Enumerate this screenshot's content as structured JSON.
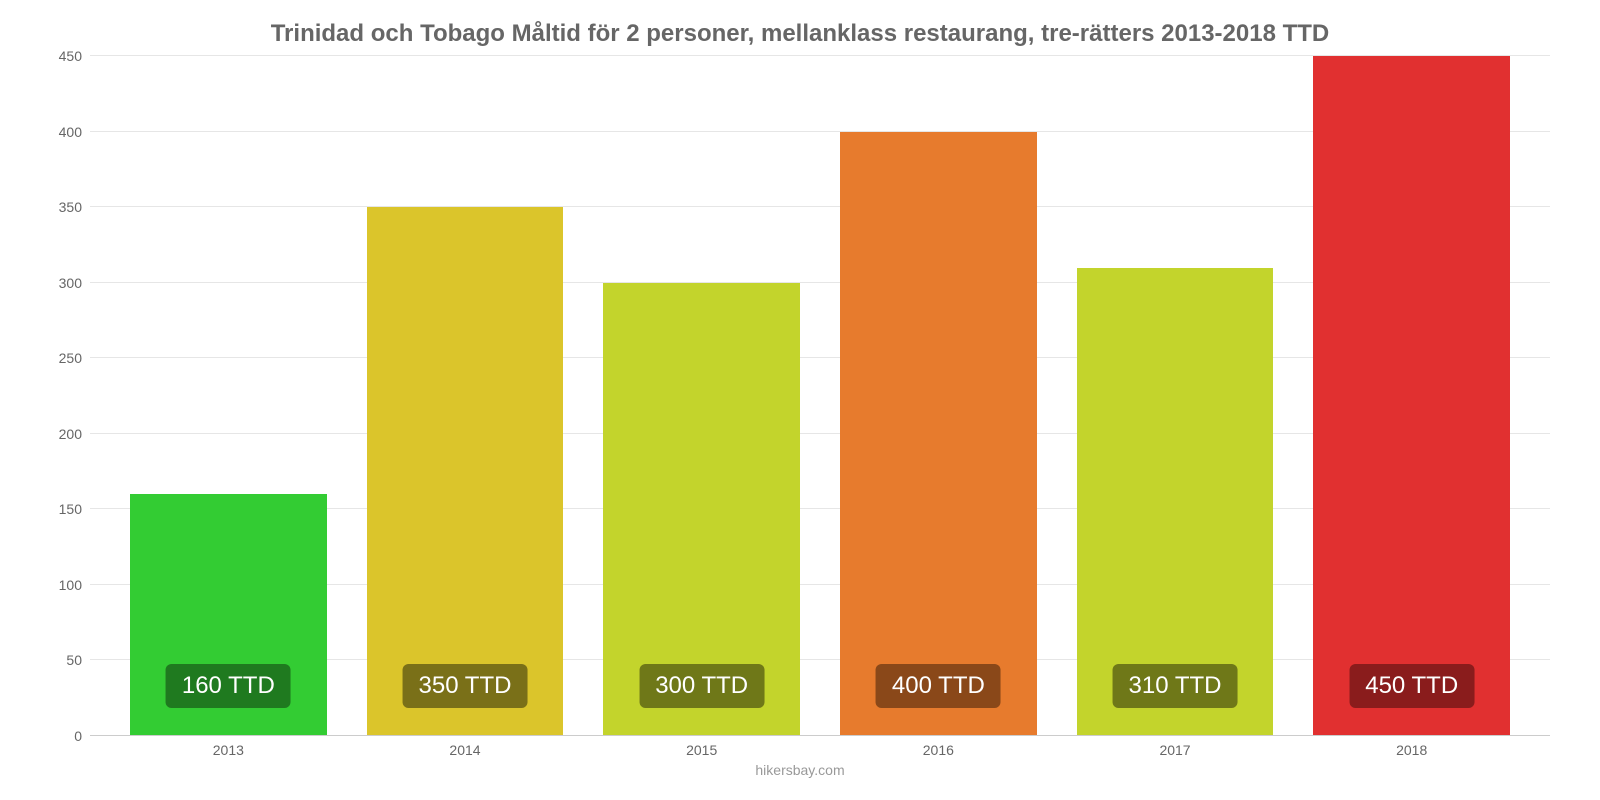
{
  "chart": {
    "type": "bar",
    "title": "Trinidad och Tobago Måltid för 2 personer, mellanklass restaurang, tre-rätters 2013-2018 TTD",
    "title_color": "#666666",
    "title_fontsize": 24,
    "background_color": "#ffffff",
    "grid_color": "#e6e6e6",
    "baseline_color": "#cccccc",
    "axis_label_color": "#666666",
    "axis_fontsize": 14,
    "ylim": [
      0,
      450
    ],
    "ytick_step": 50,
    "yticks": [
      0,
      50,
      100,
      150,
      200,
      250,
      300,
      350,
      400,
      450
    ],
    "categories": [
      "2013",
      "2014",
      "2015",
      "2016",
      "2017",
      "2018"
    ],
    "values": [
      160,
      350,
      300,
      400,
      310,
      450
    ],
    "value_labels": [
      "160 TTD",
      "350 TTD",
      "300 TTD",
      "400 TTD",
      "310 TTD",
      "450 TTD"
    ],
    "bar_colors": [
      "#33cc33",
      "#dbc52b",
      "#c3d42c",
      "#e77b2d",
      "#c3d42c",
      "#e13030"
    ],
    "badge_bg_colors": [
      "#1f7a1f",
      "#7a7018",
      "#6f7818",
      "#8a4819",
      "#6f7818",
      "#8a1c1c"
    ],
    "badge_text_color": "#ffffff",
    "badge_fontsize": 24,
    "bar_width": 0.83,
    "source": "hikersbay.com",
    "source_color": "#999999",
    "source_fontsize": 14
  }
}
